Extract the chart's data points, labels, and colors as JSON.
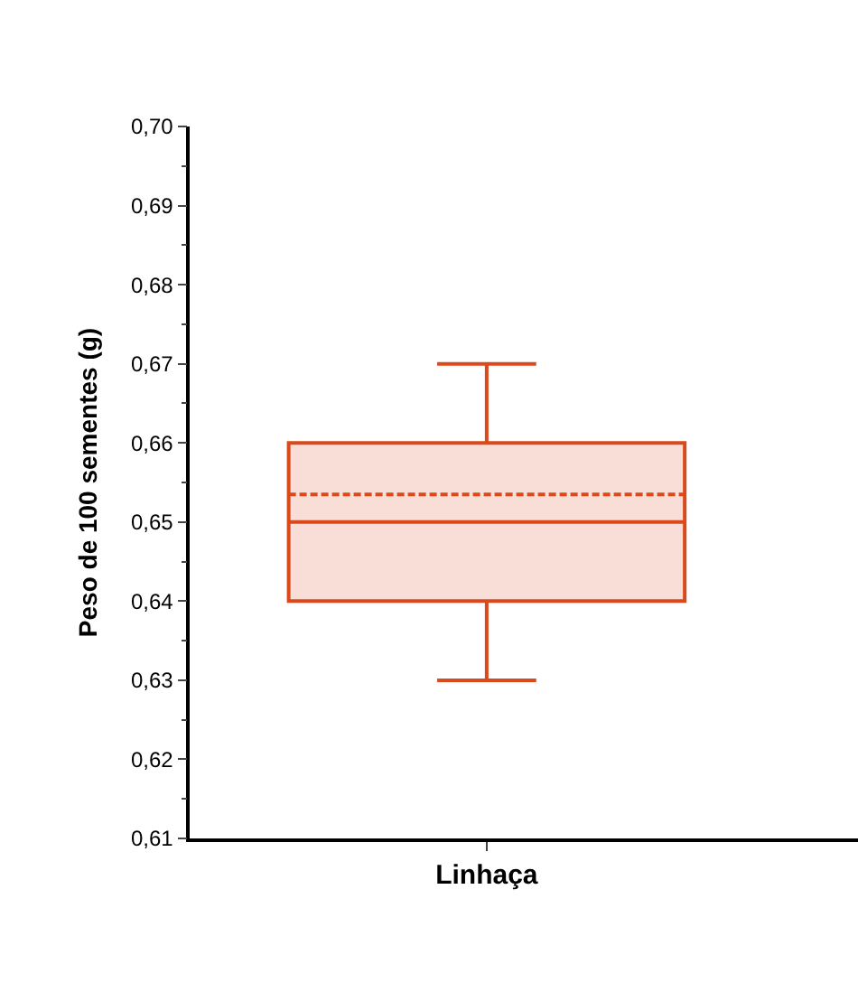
{
  "chart_data": {
    "type": "box",
    "ylabel": "Peso de 100 sementes (g)",
    "categories": [
      "Linhaça"
    ],
    "series": [
      {
        "color": "#d9491c",
        "boxes": [
          {
            "low": 0.63,
            "q1": 0.64,
            "median": 0.65,
            "q3": 0.66,
            "high": 0.67,
            "mean": 0.6535
          }
        ]
      }
    ],
    "ylim": [
      0.61,
      0.7
    ],
    "yticks": [
      {
        "value": 0.61,
        "label": "0,61"
      },
      {
        "value": 0.62,
        "label": "0,62"
      },
      {
        "value": 0.63,
        "label": "0,63"
      },
      {
        "value": 0.64,
        "label": "0,64"
      },
      {
        "value": 0.65,
        "label": "0,65"
      },
      {
        "value": 0.66,
        "label": "0,66"
      },
      {
        "value": 0.67,
        "label": "0,67"
      },
      {
        "value": 0.68,
        "label": "0,68"
      },
      {
        "value": 0.69,
        "label": "0,69"
      },
      {
        "value": 0.7,
        "label": "0,70"
      }
    ],
    "tick_labels": true
  }
}
